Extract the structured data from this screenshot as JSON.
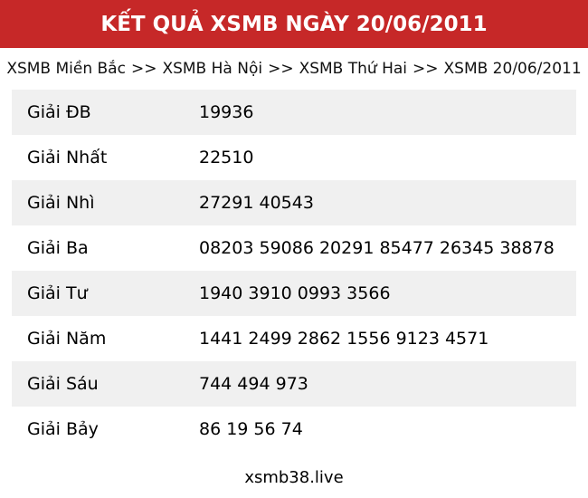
{
  "header": {
    "title": "KẾT QUẢ XSMB NGÀY 20/06/2011",
    "bg_color": "#c62828",
    "text_color": "#ffffff"
  },
  "breadcrumb": {
    "separator": ">>",
    "items": [
      "XSMB Miền Bắc",
      "XSMB Hà Nội",
      "XSMB Thứ Hai",
      "XSMB 20/06/2011"
    ]
  },
  "results_table": {
    "stripe_color": "#f0f0f0",
    "rows": [
      {
        "label": "Giải ĐB",
        "numbers": "19936"
      },
      {
        "label": "Giải Nhất",
        "numbers": "22510"
      },
      {
        "label": "Giải Nhì",
        "numbers": "27291 40543"
      },
      {
        "label": "Giải Ba",
        "numbers": "08203 59086 20291 85477 26345 38878"
      },
      {
        "label": "Giải Tư",
        "numbers": "1940 3910 0993 3566"
      },
      {
        "label": "Giải Năm",
        "numbers": "1441 2499 2862 1556 9123 4571"
      },
      {
        "label": "Giải Sáu",
        "numbers": "744 494 973"
      },
      {
        "label": "Giải Bảy",
        "numbers": "86 19 56 74"
      }
    ]
  },
  "footer": {
    "site_name": "xsmb38.live"
  }
}
